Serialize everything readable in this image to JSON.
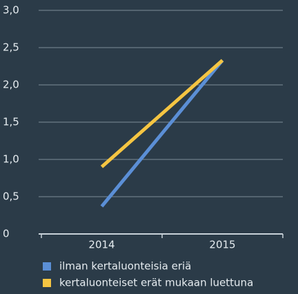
{
  "chart_data": {
    "type": "line",
    "categories": [
      "2014",
      "2015"
    ],
    "series": [
      {
        "name": "ilman kertaluonteisia eriä",
        "color": "#5b8fd6",
        "values": [
          0.37,
          2.33
        ]
      },
      {
        "name": "kertaluonteiset erät mukaan luettuna",
        "color": "#f5c542",
        "values": [
          0.9,
          2.33
        ]
      }
    ],
    "ylim": [
      0,
      3
    ],
    "yticks": [
      0,
      {
        "value": 0.5,
        "label": "0,5"
      },
      {
        "value": 1,
        "label": "1,0"
      },
      {
        "value": 1.5,
        "label": "1,5"
      },
      {
        "value": 2,
        "label": "2,0"
      },
      {
        "value": 2.5,
        "label": "2,5"
      },
      {
        "value": 3,
        "label": "3,0"
      }
    ],
    "grid": true,
    "legend": "bottom"
  }
}
